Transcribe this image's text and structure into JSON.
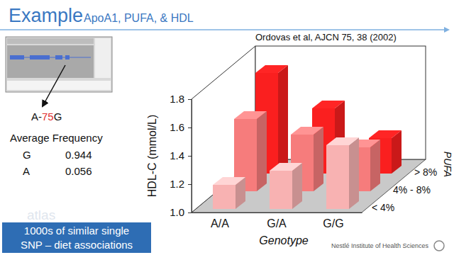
{
  "chart_data": {
    "type": "bar",
    "x_label": "Genotype",
    "y_label": "HDL-C (mmol/L)",
    "legend_title": "PUFA",
    "categories": [
      "A/A",
      "G/A",
      "G/G"
    ],
    "series": [
      {
        "name": "< 4%",
        "color": "#f8b2b2",
        "values": [
          1.17,
          1.27,
          1.45
        ]
      },
      {
        "name": "4% - 8%",
        "color": "#f67c7c",
        "values": [
          1.51,
          1.4,
          1.31
        ]
      },
      {
        "name": "> 8%",
        "color": "#fa1f1f",
        "values": [
          1.71,
          1.46,
          1.25
        ]
      }
    ],
    "ylim": [
      1.0,
      1.8
    ],
    "yticks": [
      {
        "value": 1.0,
        "label": "1.0"
      },
      1.2,
      1.4,
      1.6,
      1.8
    ],
    "grid": false
  },
  "slide": {
    "title": "Example",
    "subtitle": "ApoA1, PUFA, & HDL",
    "citation": "Ordovas et al, AJCN 75, 38 (2002)",
    "snp_parts": [
      "A-",
      "75",
      "G"
    ],
    "frequency": {
      "title": "Average Frequency",
      "rows": [
        [
          "G",
          0.944
        ],
        [
          "A",
          0.056
        ]
      ]
    },
    "watermark": "atlas",
    "callout": [
      "1000s of similar single",
      "SNP – diet associations"
    ],
    "footer": "Nestlé Institute of Health Sciences"
  }
}
